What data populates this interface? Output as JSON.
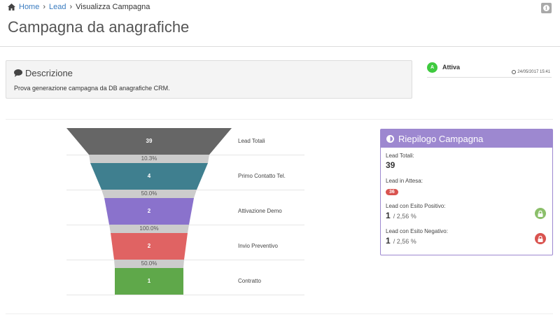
{
  "breadcrumb": {
    "home": "Home",
    "lead": "Lead",
    "current": "Visualizza Campagna"
  },
  "header": {
    "title": "Campagna da anagrafiche",
    "info_icon": "info-icon"
  },
  "description": {
    "heading": "Descrizione",
    "text": "Prova generazione campagna da DB anagrafiche CRM."
  },
  "status": {
    "badge_letter": "A",
    "label": "Attiva",
    "date": "24/05/2017 15:41"
  },
  "funnel": {
    "stages": [
      {
        "label": "Lead Totali",
        "value": "39",
        "color": "#666666"
      },
      {
        "label": "Primo Contatto Tel.",
        "value": "4",
        "color": "#3f7f8f"
      },
      {
        "label": "Attivazione Demo",
        "value": "2",
        "color": "#8a72cc"
      },
      {
        "label": "Invio Preventivo",
        "value": "2",
        "color": "#e06363"
      },
      {
        "label": "Contratto",
        "value": "1",
        "color": "#5fa84a"
      }
    ],
    "conversions": [
      "10.3%",
      "50.0%",
      "100.0%",
      "50.0%"
    ],
    "conversion_color": "#cccccc"
  },
  "summary": {
    "title": "Riepilogo Campagna",
    "lead_totali_label": "Lead Totali:",
    "lead_totali_value": "39",
    "lead_attesa_label": "Lead in Attesa:",
    "lead_attesa_value": "36",
    "positivo_label": "Lead con Esito Positivo:",
    "positivo_value": "1",
    "positivo_pct": "/ 2,56 %",
    "negativo_label": "Lead con Esito Negativo:",
    "negativo_value": "1",
    "negativo_pct": "/ 2,56 %",
    "positive_color": "#8bbf6a",
    "negative_color": "#d9534f"
  }
}
